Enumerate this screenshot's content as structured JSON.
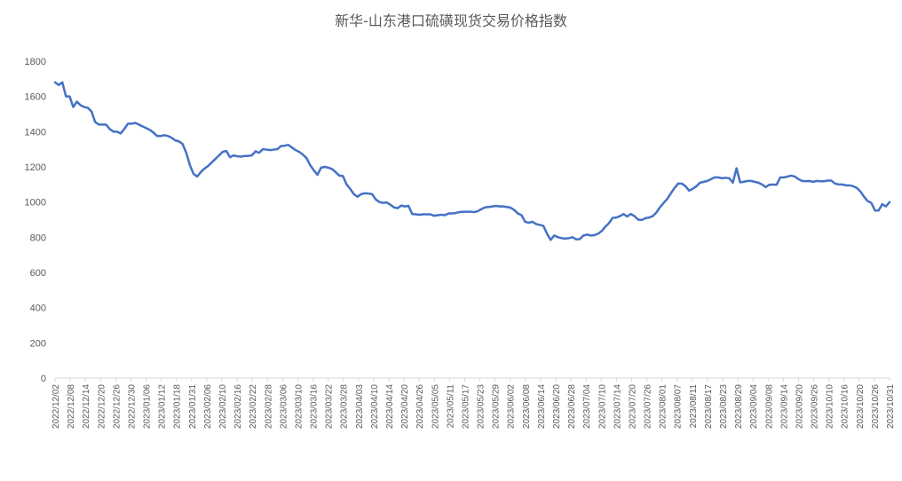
{
  "chart_data": {
    "type": "line",
    "title": "新华-山东港口硫磺现货交易价格指数",
    "xlabel": "",
    "ylabel": "",
    "ylim": [
      0,
      1800
    ],
    "y_ticks": [
      "0",
      "200",
      "400",
      "600",
      "800",
      "1000",
      "1200",
      "1400",
      "1600",
      "1800"
    ],
    "x_ticks": [
      "2022/12/02",
      "2022/12/08",
      "2022/12/14",
      "2022/12/20",
      "2022/12/26",
      "2022/12/30",
      "2023/01/06",
      "2023/01/12",
      "2023/01/18",
      "2023/01/31",
      "2023/02/06",
      "2023/02/10",
      "2023/02/16",
      "2023/02/22",
      "2023/02/28",
      "2023/03/06",
      "2023/03/10",
      "2023/03/16",
      "2023/03/22",
      "2023/03/28",
      "2023/04/03",
      "2023/04/10",
      "2023/04/14",
      "2023/04/20",
      "2023/04/26",
      "2023/05/05",
      "2023/05/11",
      "2023/05/17",
      "2023/05/23",
      "2023/05/29",
      "2023/06/02",
      "2023/06/08",
      "2023/06/14",
      "2023/06/20",
      "2023/06/28",
      "2023/07/04",
      "2023/07/10",
      "2023/07/14",
      "2023/07/20",
      "2023/07/26",
      "2023/08/01",
      "2023/08/07",
      "2023/08/11",
      "2023/08/17",
      "2023/08/23",
      "2023/08/29",
      "2023/09/04",
      "2023/09/08",
      "2023/09/14",
      "2023/09/20",
      "2023/09/26",
      "2023/10/10",
      "2023/10/16",
      "2023/10/20",
      "2023/10/26",
      "2023/10/31"
    ],
    "grid": false,
    "legend": "none",
    "series": [
      {
        "color": "#4472C4",
        "values": [
          1680,
          1665,
          1680,
          1600,
          1600,
          1540,
          1570,
          1550,
          1540,
          1535,
          1515,
          1455,
          1440,
          1440,
          1440,
          1415,
          1400,
          1400,
          1390,
          1415,
          1445,
          1445,
          1450,
          1440,
          1430,
          1420,
          1410,
          1395,
          1375,
          1375,
          1380,
          1375,
          1365,
          1350,
          1345,
          1330,
          1280,
          1210,
          1160,
          1145,
          1170,
          1190,
          1205,
          1225,
          1245,
          1265,
          1285,
          1290,
          1255,
          1265,
          1260,
          1258,
          1262,
          1262,
          1265,
          1288,
          1280,
          1300,
          1298,
          1295,
          1298,
          1300,
          1318,
          1320,
          1325,
          1310,
          1295,
          1285,
          1270,
          1250,
          1210,
          1180,
          1155,
          1195,
          1200,
          1195,
          1188,
          1170,
          1150,
          1148,
          1100,
          1075,
          1045,
          1030,
          1045,
          1050,
          1048,
          1045,
          1015,
          1000,
          995,
          998,
          985,
          970,
          965,
          980,
          975,
          978,
          932,
          930,
          928,
          930,
          930,
          930,
          922,
          925,
          928,
          925,
          935,
          935,
          938,
          943,
          945,
          945,
          945,
          943,
          948,
          960,
          970,
          972,
          975,
          978,
          975,
          975,
          972,
          968,
          955,
          935,
          925,
          888,
          882,
          888,
          875,
          870,
          865,
          820,
          785,
          810,
          800,
          795,
          792,
          795,
          800,
          788,
          790,
          810,
          815,
          810,
          812,
          820,
          835,
          860,
          880,
          910,
          912,
          920,
          932,
          918,
          932,
          920,
          900,
          898,
          908,
          912,
          920,
          940,
          970,
          995,
          1018,
          1050,
          1080,
          1105,
          1105,
          1090,
          1065,
          1075,
          1090,
          1110,
          1115,
          1120,
          1130,
          1140,
          1140,
          1135,
          1138,
          1135,
          1110,
          1192,
          1112,
          1115,
          1120,
          1120,
          1115,
          1110,
          1100,
          1085,
          1098,
          1100,
          1098,
          1140,
          1140,
          1145,
          1150,
          1145,
          1130,
          1120,
          1118,
          1120,
          1115,
          1120,
          1118,
          1118,
          1122,
          1122,
          1105,
          1100,
          1100,
          1095,
          1095,
          1090,
          1080,
          1060,
          1030,
          1005,
          995,
          952,
          952,
          988,
          975,
          1000
        ]
      }
    ]
  }
}
